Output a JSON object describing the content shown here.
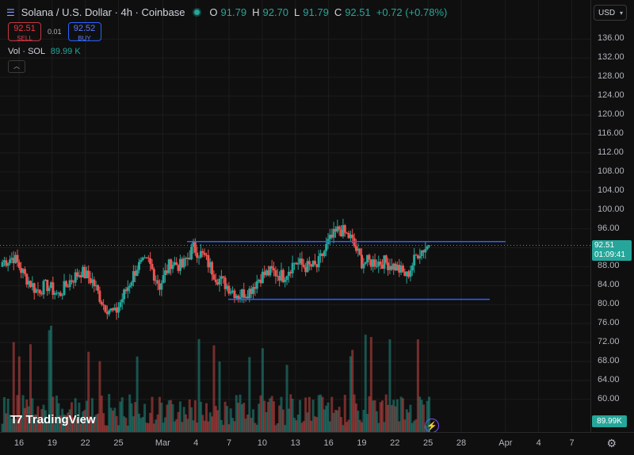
{
  "header": {
    "symbol_title": "Solana / U.S. Dollar · 4h · Coinbase",
    "open_label": "O",
    "open_value": "91.79",
    "high_label": "H",
    "high_value": "92.70",
    "low_label": "L",
    "low_value": "91.79",
    "close_label": "C",
    "close_value": "92.51",
    "change": "+0.72 (+0.78%)",
    "currency": "USD"
  },
  "trade": {
    "sell_price": "92.51",
    "sell_label": "SELL",
    "spread": "0.01",
    "buy_price": "92.52",
    "buy_label": "BUY"
  },
  "volume_legend": {
    "label": "Vol · SOL",
    "value": "89.99 K"
  },
  "price_axis": {
    "ticks": [
      "136.00",
      "132.00",
      "128.00",
      "124.00",
      "120.00",
      "116.00",
      "112.00",
      "108.00",
      "104.00",
      "100.00",
      "96.00",
      "92.00",
      "88.00",
      "84.00",
      "80.00",
      "76.00",
      "72.00",
      "68.00",
      "64.00",
      "60.00"
    ],
    "current_price": "92.51",
    "countdown": "01:09:41",
    "volume_tag": "89.99K"
  },
  "time_axis": {
    "labels": [
      "16",
      "19",
      "22",
      "25",
      "Mar",
      "4",
      "7",
      "10",
      "13",
      "16",
      "19",
      "22",
      "25",
      "28",
      "Apr",
      "4",
      "7"
    ]
  },
  "branding": "TradingView",
  "colors": {
    "up": "#26a69a",
    "down": "#ef5350",
    "line": "#2962ff",
    "background": "#0f0f0f"
  },
  "chart_data": {
    "type": "candlestick",
    "timeframe": "4h",
    "ylim": [
      58,
      138
    ],
    "x_ticks": [
      "16",
      "19",
      "22",
      "25",
      "Mar",
      "4",
      "7",
      "10",
      "13",
      "16",
      "19",
      "22",
      "25",
      "28",
      "Apr",
      "4",
      "7"
    ],
    "trend_lines": [
      {
        "name": "resistance",
        "value": 93.3,
        "from": "Mar 3",
        "to": "Apr 1"
      },
      {
        "name": "support",
        "value": 81.1,
        "from": "Mar 6",
        "to": "Mar 31"
      }
    ],
    "close_series_approx": [
      {
        "date": "Feb 15",
        "close": 89
      },
      {
        "date": "Feb 16",
        "close": 90
      },
      {
        "date": "Feb 17",
        "close": 86
      },
      {
        "date": "Feb 18",
        "close": 83
      },
      {
        "date": "Feb 19",
        "close": 84
      },
      {
        "date": "Feb 20",
        "close": 82
      },
      {
        "date": "Feb 21",
        "close": 85
      },
      {
        "date": "Feb 22",
        "close": 87
      },
      {
        "date": "Feb 23",
        "close": 85
      },
      {
        "date": "Feb 24",
        "close": 80
      },
      {
        "date": "Feb 25",
        "close": 78
      },
      {
        "date": "Feb 26",
        "close": 83
      },
      {
        "date": "Feb 27",
        "close": 88
      },
      {
        "date": "Feb 28",
        "close": 89
      },
      {
        "date": "Mar 1",
        "close": 84
      },
      {
        "date": "Mar 2",
        "close": 89
      },
      {
        "date": "Mar 3",
        "close": 88
      },
      {
        "date": "Mar 4",
        "close": 92
      },
      {
        "date": "Mar 5",
        "close": 90
      },
      {
        "date": "Mar 6",
        "close": 86
      },
      {
        "date": "Mar 7",
        "close": 84
      },
      {
        "date": "Mar 8",
        "close": 82
      },
      {
        "date": "Mar 9",
        "close": 83
      },
      {
        "date": "Mar 10",
        "close": 86
      },
      {
        "date": "Mar 11",
        "close": 87
      },
      {
        "date": "Mar 12",
        "close": 86
      },
      {
        "date": "Mar 13",
        "close": 89
      },
      {
        "date": "Mar 14",
        "close": 88
      },
      {
        "date": "Mar 15",
        "close": 88
      },
      {
        "date": "Mar 16",
        "close": 93
      },
      {
        "date": "Mar 17",
        "close": 96
      },
      {
        "date": "Mar 18",
        "close": 94
      },
      {
        "date": "Mar 19",
        "close": 89
      },
      {
        "date": "Mar 20",
        "close": 89
      },
      {
        "date": "Mar 21",
        "close": 89
      },
      {
        "date": "Mar 22",
        "close": 88
      },
      {
        "date": "Mar 23",
        "close": 86
      },
      {
        "date": "Mar 24",
        "close": 91
      },
      {
        "date": "Mar 25",
        "close": 92.51
      }
    ]
  }
}
